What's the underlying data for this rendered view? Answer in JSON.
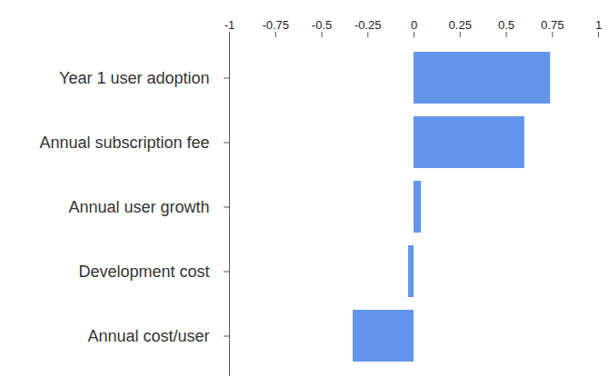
{
  "chart_data": {
    "type": "bar",
    "orientation": "horizontal",
    "categories": [
      "Year 1 user adoption",
      "Annual subscription fee",
      "Annual user growth",
      "Development cost",
      "Annual cost/user"
    ],
    "values": [
      0.74,
      0.6,
      0.04,
      -0.03,
      -0.33
    ],
    "color": "#6495ed",
    "xlim": [
      -1,
      1
    ],
    "xticks": [
      -1,
      -0.75,
      -0.5,
      -0.25,
      0,
      0.25,
      0.5,
      0.75,
      1
    ],
    "grid": false
  }
}
